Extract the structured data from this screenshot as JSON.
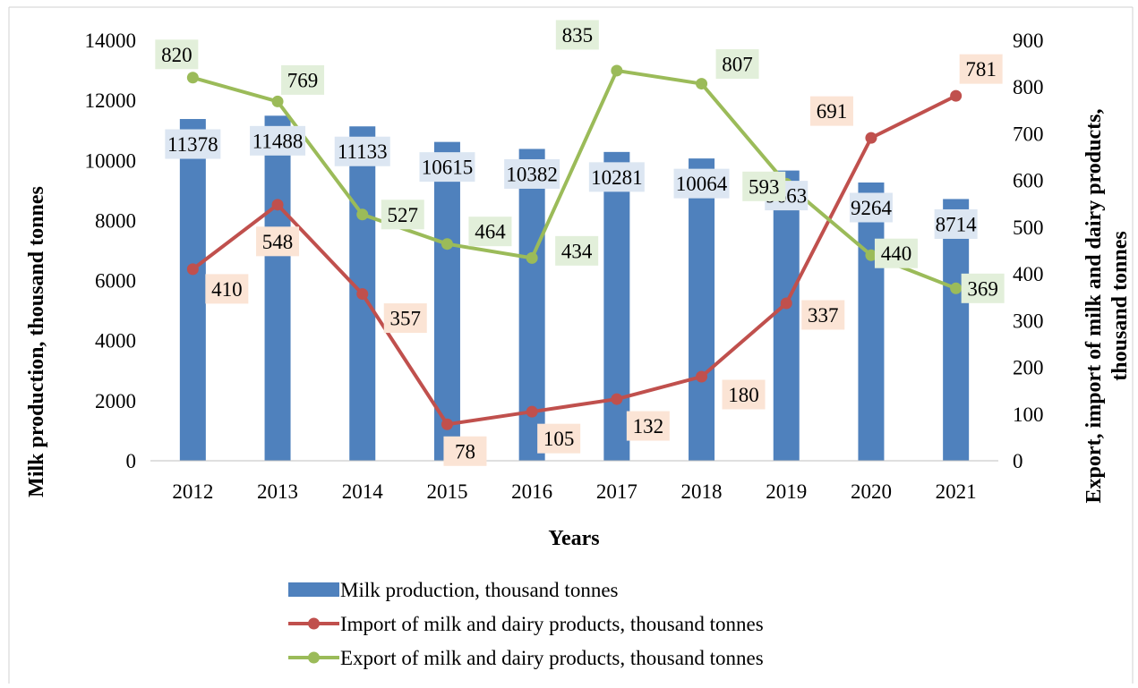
{
  "chart_data": {
    "type": "bar",
    "categories": [
      "2012",
      "2013",
      "2014",
      "2015",
      "2016",
      "2017",
      "2018",
      "2019",
      "2020",
      "2021"
    ],
    "xlabel": "Years",
    "ylabel": "Milk production, thousand tonnes",
    "ylabel_right_line1": "Export, import of milk and dairy products,",
    "ylabel_right_line2": "thousand tonnes",
    "ylim": [
      0,
      14000
    ],
    "y_ticks": [
      "0",
      "2000",
      "4000",
      "6000",
      "8000",
      "10000",
      "12000",
      "14000"
    ],
    "ylim_right": [
      0,
      900
    ],
    "y_right_ticks": [
      "0",
      "100",
      "200",
      "300",
      "400",
      "500",
      "600",
      "700",
      "800",
      "900"
    ],
    "grid": false,
    "legend_position": "bottom",
    "series": [
      {
        "name": "Milk production, thousand tonnes",
        "type": "bar",
        "axis": "left",
        "color": "#4f81bd",
        "label_bg": "#dce6f2",
        "values": [
          11378,
          11488,
          11133,
          10615,
          10382,
          10281,
          10064,
          9663,
          9264,
          8714
        ]
      },
      {
        "name": "Import of milk and dairy products, thousand tonnes",
        "type": "line",
        "axis": "right",
        "color": "#c0504d",
        "label_bg": "#fbe4d5",
        "values": [
          410,
          548,
          357,
          78,
          105,
          132,
          180,
          337,
          691,
          781
        ]
      },
      {
        "name": "Export of milk and dairy products, thousand tonnes",
        "type": "line",
        "axis": "right",
        "color": "#9bbb59",
        "label_bg": "#e2efda",
        "values": [
          820,
          769,
          527,
          464,
          434,
          835,
          807,
          593,
          440,
          369
        ]
      }
    ]
  }
}
